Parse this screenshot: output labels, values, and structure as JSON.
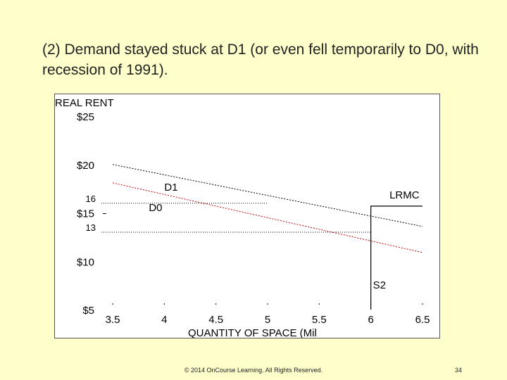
{
  "slide": {
    "title": "(2) Demand stayed stuck at D1 (or even fell temporarily to D0, with recession of 1991).",
    "footer": "© 2014 OnCourse Learning. All Rights Reserved.",
    "page_number": "34"
  },
  "chart_data": {
    "type": "line",
    "title": "",
    "xlabel": "QUANTITY OF SPACE (Mil",
    "ylabel": "REAL RENT",
    "xlim": [
      3.5,
      6.5
    ],
    "ylim": [
      5,
      25
    ],
    "x_ticks": [
      "3.5",
      "4",
      "4.5",
      "5",
      "5.5",
      "6",
      "6.5"
    ],
    "y_ticks": [
      {
        "value": 25,
        "label": "$25"
      },
      {
        "value": 20,
        "label": "$20"
      },
      {
        "value": 15,
        "label": "$15"
      },
      {
        "value": 10,
        "label": "$10"
      },
      {
        "value": 5,
        "label": "$5"
      }
    ],
    "y_extra_ticks": [
      {
        "value": 16,
        "label": "16"
      },
      {
        "value": 13,
        "label": "13"
      }
    ],
    "grid": false,
    "series": [
      {
        "name": "D1",
        "color": "#000000",
        "dash": "dotted",
        "x": [
          3.5,
          6.5
        ],
        "y": [
          20,
          13.6
        ]
      },
      {
        "name": "D0",
        "color": "#cc0000",
        "dash": "dotted",
        "x": [
          3.5,
          6.5
        ],
        "y": [
          18.1,
          10.9
        ]
      },
      {
        "name": "LRMC",
        "color": "#000000",
        "dash": "solid",
        "x": [
          6,
          6,
          6.5
        ],
        "y": [
          5,
          15.7,
          15.7
        ]
      }
    ],
    "reference_lines": [
      {
        "value": 16,
        "x_end": 5.0
      },
      {
        "value": 13,
        "x_end": 6.0
      }
    ],
    "annotations": [
      {
        "text": "D1",
        "x": 4.0,
        "y": 17.3
      },
      {
        "text": "D0",
        "x": 3.85,
        "y": 15.2
      },
      {
        "text": "LRMC",
        "x": 6.18,
        "y": 16.5
      },
      {
        "text": "S2",
        "x": 6.02,
        "y": 7.2
      }
    ]
  }
}
